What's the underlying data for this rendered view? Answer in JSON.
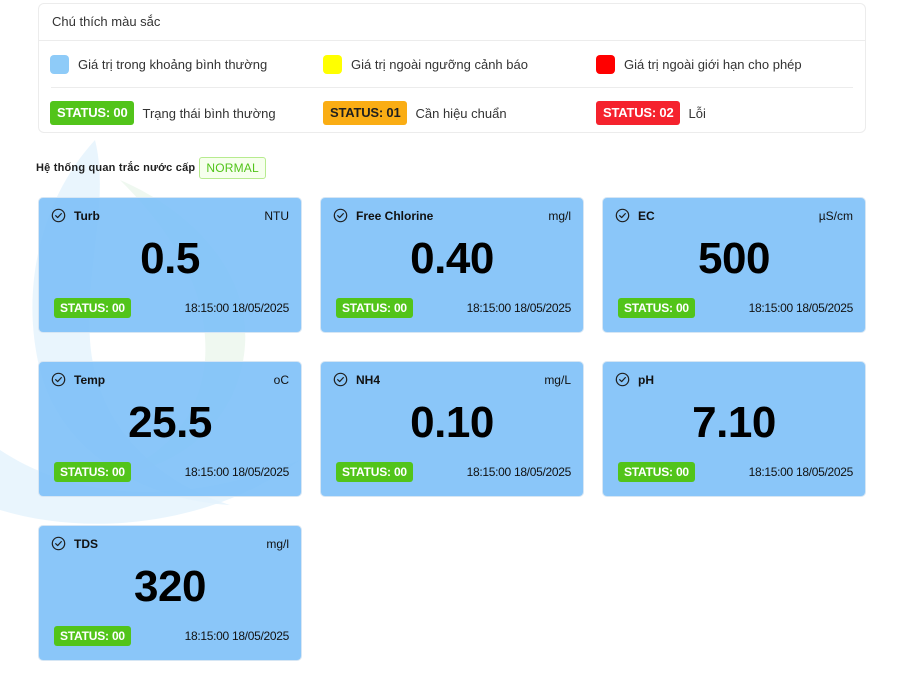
{
  "legend": {
    "title": "Chú thích màu sắc",
    "colors": [
      {
        "label": "Giá trị trong khoảng bình thường",
        "color": "#8ecbf8"
      },
      {
        "label": "Giá trị ngoài ngưỡng cảnh báo",
        "color": "#ffff00"
      },
      {
        "label": "Giá trị ngoài giới hạn cho phép",
        "color": "#ff0000"
      }
    ],
    "statuses": [
      {
        "code": "STATUS: 00",
        "label": "Trạng thái bình thường",
        "color": "#52c41a"
      },
      {
        "code": "STATUS: 01",
        "label": "Cần hiệu chuẩn",
        "color": "#faad14"
      },
      {
        "code": "STATUS: 02",
        "label": "Lỗi",
        "color": "#f5222d"
      }
    ]
  },
  "system": {
    "title": "Hệ thống quan trắc nước cấp",
    "state": "NORMAL"
  },
  "cards": [
    {
      "name": "Turb",
      "unit": "NTU",
      "value": "0.5",
      "status": "STATUS: 00",
      "time": "18:15:00 18/05/2025"
    },
    {
      "name": "Free Chlorine",
      "unit": "mg/l",
      "value": "0.40",
      "status": "STATUS: 00",
      "time": "18:15:00 18/05/2025"
    },
    {
      "name": "EC",
      "unit": "µS/cm",
      "value": "500",
      "status": "STATUS: 00",
      "time": "18:15:00 18/05/2025"
    },
    {
      "name": "Temp",
      "unit": "oC",
      "value": "25.5",
      "status": "STATUS: 00",
      "time": "18:15:00 18/05/2025"
    },
    {
      "name": "NH4",
      "unit": "mg/L",
      "value": "0.10",
      "status": "STATUS: 00",
      "time": "18:15:00 18/05/2025"
    },
    {
      "name": "pH",
      "unit": "",
      "value": "7.10",
      "status": "STATUS: 00",
      "time": "18:15:00 18/05/2025"
    },
    {
      "name": "TDS",
      "unit": "mg/l",
      "value": "320",
      "status": "STATUS: 00",
      "time": "18:15:00 18/05/2025"
    }
  ],
  "icons": {
    "card_icon": "check-circle-icon"
  }
}
